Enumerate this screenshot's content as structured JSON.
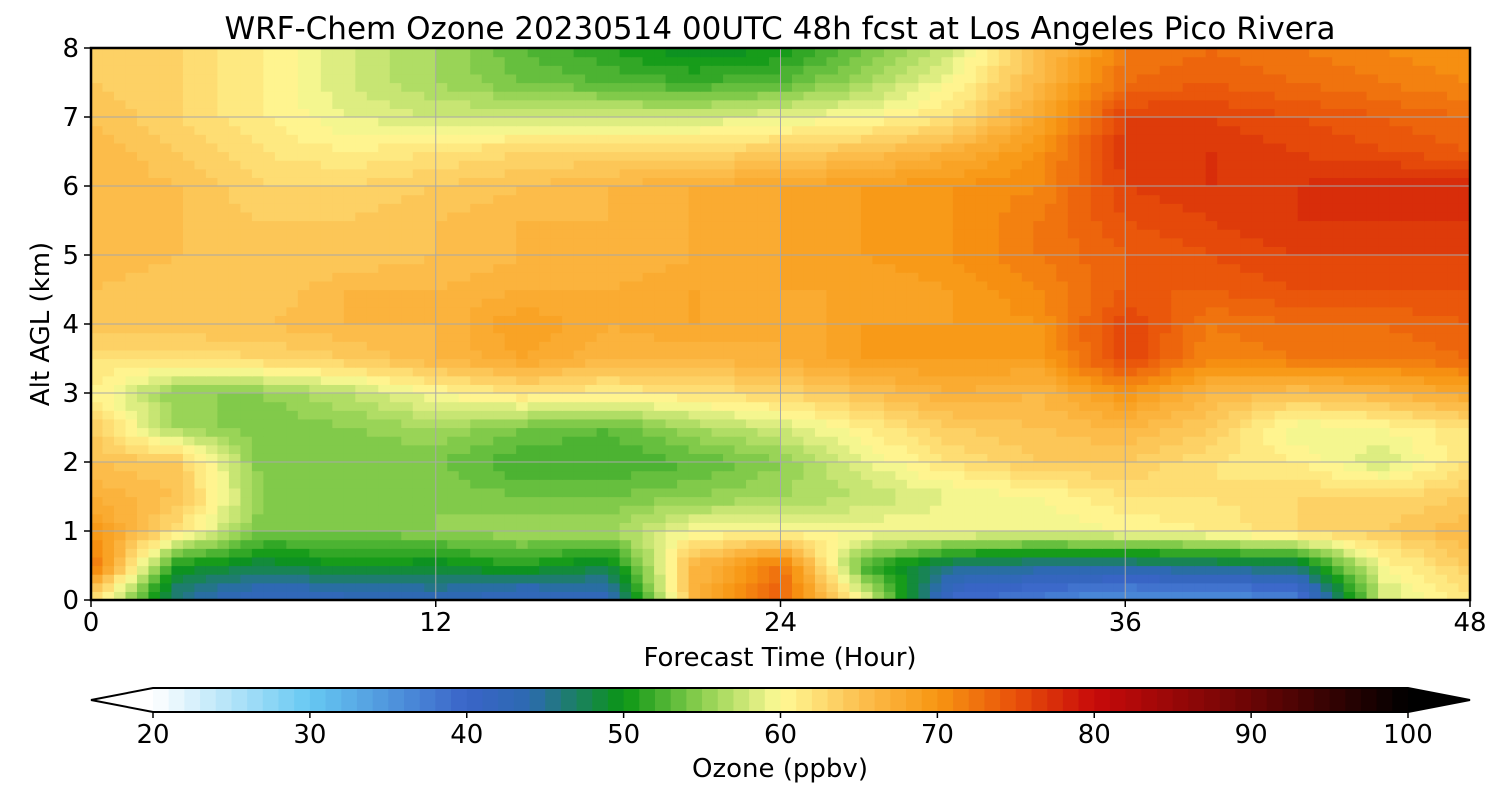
{
  "chart_data": {
    "type": "heatmap",
    "title": "WRF-Chem Ozone  20230514 00UTC 48h fcst at Los Angeles Pico Rivera",
    "xlabel": "Forecast Time (Hour)",
    "ylabel": "Alt AGL (km)",
    "xlim": [
      0,
      48
    ],
    "ylim": [
      0,
      8
    ],
    "x_ticks": [
      0,
      12,
      24,
      36,
      48
    ],
    "y_ticks": [
      0,
      1,
      2,
      3,
      4,
      5,
      6,
      7,
      8
    ],
    "grid": true,
    "x": [
      0,
      3,
      6,
      9,
      12,
      15,
      18,
      21,
      24,
      27,
      30,
      33,
      36,
      39,
      42,
      45,
      48
    ],
    "y": [
      0.1,
      0.5,
      1,
      1.5,
      2,
      2.5,
      3,
      3.5,
      4,
      4.5,
      5,
      5.5,
      6,
      6.5,
      7,
      7.5,
      8
    ],
    "values": [
      [
        64,
        46,
        42,
        43,
        44,
        42,
        43,
        66,
        74,
        58,
        40,
        38,
        36,
        36,
        38,
        58,
        62
      ],
      [
        73,
        50,
        48,
        50,
        49,
        51,
        48,
        66,
        73,
        52,
        46,
        45,
        45,
        46,
        47,
        60,
        64
      ],
      [
        70,
        62,
        54,
        54,
        55,
        56,
        56,
        60,
        60,
        60,
        60,
        59,
        60,
        61,
        63,
        64,
        66
      ],
      [
        67,
        65,
        55,
        55,
        55,
        54,
        54,
        55,
        56,
        57,
        59,
        60,
        62,
        62,
        63,
        63,
        64
      ],
      [
        65,
        64,
        54,
        54,
        54,
        52,
        52,
        53,
        55,
        59,
        62,
        64,
        64,
        62,
        61,
        58,
        62
      ],
      [
        64,
        56,
        54,
        55,
        56,
        54,
        53,
        56,
        58,
        61,
        64,
        65,
        66,
        64,
        59,
        60,
        62
      ],
      [
        61,
        55,
        55,
        57,
        60,
        62,
        61,
        62,
        63,
        65,
        67,
        66,
        70,
        66,
        65,
        66,
        68
      ],
      [
        62,
        62,
        63,
        64,
        66,
        68,
        66,
        66,
        67,
        69,
        69,
        69,
        76,
        71,
        72,
        72,
        73
      ],
      [
        65,
        65,
        65,
        66,
        66,
        69,
        67,
        68,
        67,
        69,
        69,
        70,
        76,
        72,
        73,
        73,
        74
      ],
      [
        65,
        64,
        64,
        66,
        66,
        67,
        67,
        68,
        68,
        68,
        69,
        71,
        74,
        74,
        75,
        75,
        75
      ],
      [
        66,
        65,
        64,
        64,
        65,
        66,
        66,
        67,
        68,
        69,
        70,
        72,
        74,
        75,
        76,
        76,
        76
      ],
      [
        66,
        65,
        64,
        64,
        65,
        66,
        66,
        67,
        68,
        69,
        70,
        72,
        75,
        76,
        77,
        77,
        77
      ],
      [
        66,
        65,
        63,
        63,
        64,
        65,
        66,
        67,
        68,
        69,
        70,
        71,
        76,
        77,
        77,
        78,
        78
      ],
      [
        66,
        64,
        62,
        61,
        62,
        63,
        63,
        63,
        64,
        65,
        67,
        70,
        77,
        77,
        76,
        75,
        74
      ],
      [
        65,
        63,
        61,
        59,
        58,
        58,
        58,
        58,
        59,
        60,
        62,
        68,
        76,
        76,
        75,
        74,
        73
      ],
      [
        64,
        63,
        61,
        58,
        56,
        54,
        53,
        52,
        53,
        56,
        60,
        66,
        73,
        74,
        73,
        72,
        71
      ],
      [
        64,
        63,
        61,
        58,
        56,
        53,
        51,
        49,
        50,
        54,
        58,
        65,
        72,
        73,
        72,
        71,
        70
      ]
    ],
    "colorbar": {
      "label": "Ozone  (ppbv)",
      "min": 20,
      "max": 100,
      "ticks": [
        20,
        30,
        40,
        50,
        60,
        70,
        80,
        90,
        100
      ],
      "extend": "both",
      "colors": [
        {
          "v": 20,
          "c": "#ffffff"
        },
        {
          "v": 30,
          "c": "#66c8f2"
        },
        {
          "v": 40,
          "c": "#3a64c8"
        },
        {
          "v": 44,
          "c": "#2c6ab0"
        },
        {
          "v": 50,
          "c": "#0a9614"
        },
        {
          "v": 55,
          "c": "#8ed050"
        },
        {
          "v": 60,
          "c": "#fffa96"
        },
        {
          "v": 65,
          "c": "#fcc050"
        },
        {
          "v": 70,
          "c": "#f89612"
        },
        {
          "v": 75,
          "c": "#e8500a"
        },
        {
          "v": 80,
          "c": "#c80a0a"
        },
        {
          "v": 90,
          "c": "#6a0505"
        },
        {
          "v": 100,
          "c": "#000000"
        }
      ]
    }
  }
}
